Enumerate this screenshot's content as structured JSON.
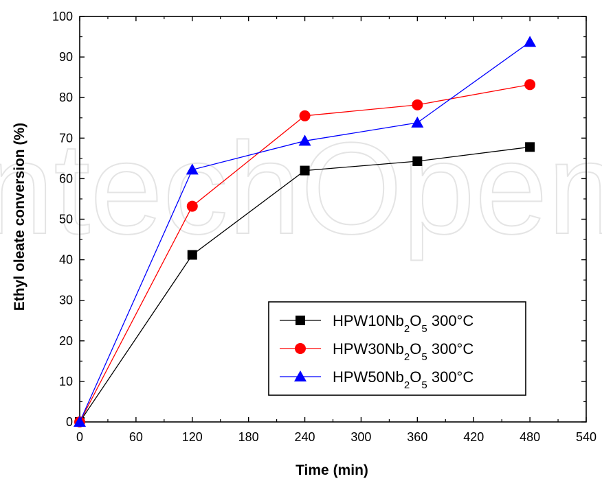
{
  "watermark": "IntechOpen",
  "chart_data": {
    "type": "line",
    "xlabel": "Time (min)",
    "ylabel": "Ethyl oleate conversion (%)",
    "xlim": [
      0,
      540
    ],
    "ylim": [
      0,
      100
    ],
    "xticks": [
      0,
      60,
      120,
      180,
      240,
      300,
      360,
      420,
      480,
      540
    ],
    "yticks": [
      0,
      10,
      20,
      30,
      40,
      50,
      60,
      70,
      80,
      90,
      100
    ],
    "x": [
      0,
      120,
      240,
      360,
      480
    ],
    "grid": false,
    "legend_position": "bottom-right",
    "series": [
      {
        "name": "HPW10Nb2O5 300°C",
        "label_parts": [
          "HPW10Nb",
          "2",
          "O",
          "5",
          " 300°C"
        ],
        "values": [
          0,
          41.2,
          62.0,
          64.3,
          67.8
        ],
        "color": "#000000",
        "marker": "square"
      },
      {
        "name": "HPW30Nb2O5 300°C",
        "label_parts": [
          " HPW30Nb",
          "2",
          "O",
          "5",
          " 300°C"
        ],
        "values": [
          0,
          53.2,
          75.5,
          78.2,
          83.2
        ],
        "color": "#ff0000",
        "marker": "circle"
      },
      {
        "name": "HPW50Nb2O5 300°C",
        "label_parts": [
          "HPW50Nb",
          "2",
          "O",
          "5",
          " 300°C"
        ],
        "values": [
          0,
          62.2,
          69.3,
          73.8,
          93.7
        ],
        "color": "#0000ff",
        "marker": "triangle"
      }
    ]
  }
}
